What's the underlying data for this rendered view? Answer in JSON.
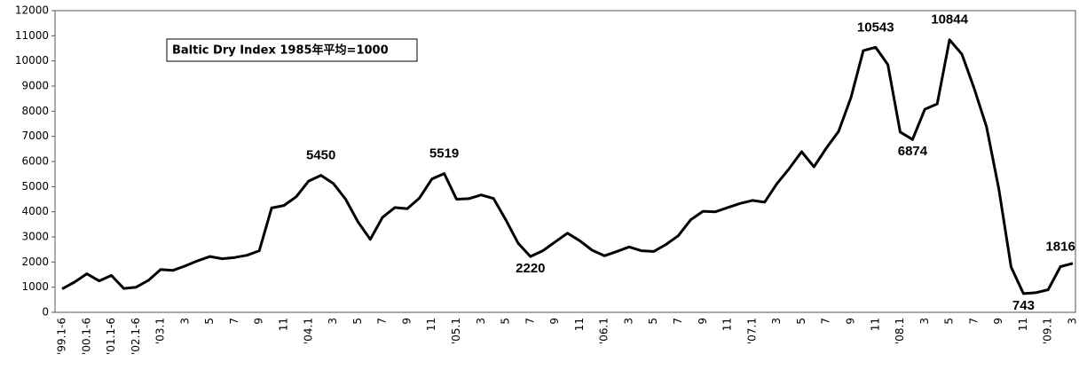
{
  "chart_data": {
    "type": "line",
    "title": "Baltic Dry Index  1985年平均=1000",
    "categories": [
      "'99.1-6",
      null,
      "'00.1-6",
      null,
      "'01.1-6",
      null,
      "'02.1-6",
      null,
      "'03.1",
      null,
      "3",
      null,
      "5",
      null,
      "7",
      null,
      "9",
      null,
      "11",
      null,
      "'04.1",
      null,
      "3",
      null,
      "5",
      null,
      "7",
      null,
      "9",
      null,
      "11",
      null,
      "'05.1",
      null,
      "3",
      null,
      "5",
      null,
      "7",
      null,
      "9",
      null,
      "11",
      null,
      "'06.1",
      null,
      "3",
      null,
      "5",
      null,
      "7",
      null,
      "9",
      null,
      "11",
      null,
      "'07.1",
      null,
      "3",
      null,
      "5",
      null,
      "7",
      null,
      "9",
      null,
      "11",
      null,
      "'08.1",
      null,
      "3",
      null,
      "5",
      null,
      "7",
      null,
      "9",
      null,
      "11",
      null,
      "'09.1",
      null,
      "3"
    ],
    "values": [
      930,
      1200,
      1530,
      1250,
      1470,
      950,
      1000,
      1270,
      1700,
      1670,
      1850,
      2050,
      2220,
      2130,
      2180,
      2270,
      2450,
      4150,
      4250,
      4600,
      5220,
      5450,
      5130,
      4500,
      3600,
      2900,
      3780,
      4170,
      4120,
      4550,
      5300,
      5519,
      4500,
      4520,
      4670,
      4530,
      3680,
      2750,
      2220,
      2450,
      2800,
      3150,
      2850,
      2470,
      2250,
      2420,
      2600,
      2450,
      2420,
      2700,
      3050,
      3680,
      4020,
      4000,
      4170,
      4330,
      4450,
      4380,
      5120,
      5720,
      6390,
      5790,
      6530,
      7200,
      8540,
      10410,
      10543,
      9850,
      7170,
      6874,
      8080,
      8290,
      10844,
      10270,
      8900,
      7380,
      4900,
      1800,
      743,
      780,
      900,
      1816,
      1950
    ],
    "value_labels": [
      null,
      null,
      null,
      null,
      null,
      null,
      null,
      null,
      null,
      null,
      null,
      null,
      null,
      null,
      null,
      null,
      null,
      null,
      null,
      null,
      null,
      "5450",
      null,
      null,
      null,
      null,
      null,
      null,
      null,
      null,
      null,
      "5519",
      null,
      null,
      null,
      null,
      null,
      null,
      "2220",
      null,
      null,
      null,
      null,
      null,
      null,
      null,
      null,
      null,
      null,
      null,
      null,
      null,
      null,
      null,
      null,
      null,
      null,
      null,
      null,
      null,
      null,
      null,
      null,
      null,
      null,
      null,
      "10543",
      null,
      null,
      "6874",
      null,
      null,
      "10844",
      null,
      null,
      null,
      null,
      null,
      "743",
      null,
      null,
      "1816",
      null
    ],
    "color": "#000000",
    "ylim": [
      0,
      12000
    ],
    "yticks": [
      0,
      1000,
      2000,
      3000,
      4000,
      5000,
      6000,
      7000,
      8000,
      9000,
      10000,
      11000,
      12000
    ],
    "grid": false
  }
}
